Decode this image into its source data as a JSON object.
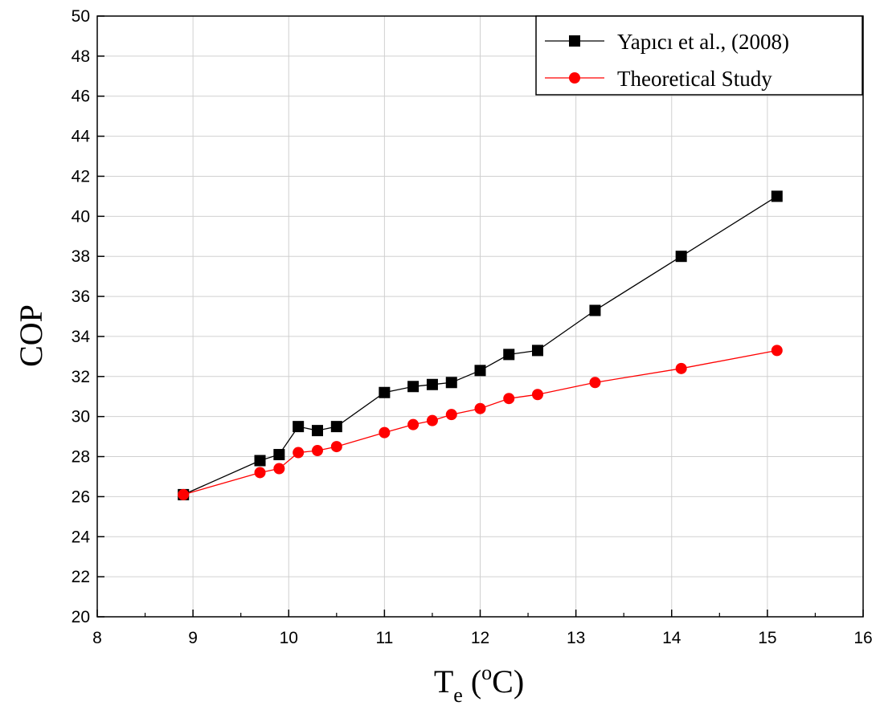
{
  "chart_data": {
    "type": "line",
    "title": "",
    "xlabel": {
      "main": "T",
      "sub": "e",
      "open": " (",
      "sup": "o",
      "unit": "C)"
    },
    "ylabel": "COP",
    "xlim": [
      8,
      16
    ],
    "ylim": [
      20,
      50
    ],
    "x_ticks": [
      "8",
      "9",
      "10",
      "11",
      "12",
      "13",
      "14",
      "15",
      "16"
    ],
    "y_ticks": [
      "20",
      "22",
      "24",
      "26",
      "28",
      "30",
      "32",
      "34",
      "36",
      "38",
      "40",
      "42",
      "44",
      "46",
      "48",
      "50"
    ],
    "grid": true,
    "legend_position": "top-right",
    "series": [
      {
        "name": "Yapıcı et al., (2008)",
        "color": "#000000",
        "marker": "square",
        "x": [
          8.9,
          9.7,
          9.9,
          10.1,
          10.3,
          10.5,
          11.0,
          11.3,
          11.5,
          11.7,
          12.0,
          12.3,
          12.6,
          13.2,
          14.1,
          15.1
        ],
        "y": [
          26.1,
          27.8,
          28.1,
          29.5,
          29.3,
          29.5,
          31.2,
          31.5,
          31.6,
          31.7,
          32.3,
          33.1,
          33.3,
          35.3,
          38.0,
          41.0
        ]
      },
      {
        "name": "Theoretical Study",
        "color": "#ff0000",
        "marker": "circle",
        "x": [
          8.9,
          9.7,
          9.9,
          10.1,
          10.3,
          10.5,
          11.0,
          11.3,
          11.5,
          11.7,
          12.0,
          12.3,
          12.6,
          13.2,
          14.1,
          15.1
        ],
        "y": [
          26.1,
          27.2,
          27.4,
          28.2,
          28.3,
          28.5,
          29.2,
          29.6,
          29.8,
          30.1,
          30.4,
          30.9,
          31.1,
          31.7,
          32.4,
          33.3
        ]
      }
    ]
  }
}
